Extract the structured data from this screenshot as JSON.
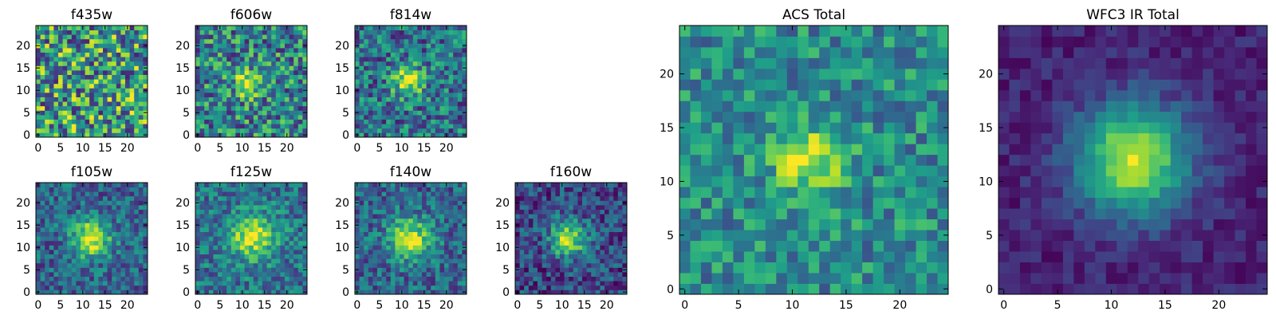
{
  "figure": {
    "colormap": "viridis",
    "colormap_stops": [
      "#440154",
      "#482878",
      "#3e4989",
      "#31688e",
      "#26828e",
      "#1f9e89",
      "#35b779",
      "#6ece58",
      "#b5de2b",
      "#fde725"
    ],
    "panels_total": 9
  },
  "chart_data": [
    {
      "type": "heatmap",
      "title": "f435w",
      "x_ticks": [
        "0",
        "5",
        "10",
        "15",
        "20"
      ],
      "y_ticks": [
        "0",
        "5",
        "10",
        "15",
        "20"
      ],
      "xlim": [
        -0.5,
        24.5
      ],
      "ylim": [
        -0.5,
        24.5
      ],
      "grid_size": [
        25,
        25
      ],
      "source": {
        "x0": 12.5,
        "y0": 12,
        "sigma": 4.0,
        "amp": 0.0
      },
      "noise": {
        "seed": 11,
        "amplitude": 0.9,
        "baseline": 0.55
      }
    },
    {
      "type": "heatmap",
      "title": "f606w",
      "x_ticks": [
        "0",
        "5",
        "10",
        "15",
        "20"
      ],
      "y_ticks": [
        "0",
        "5",
        "10",
        "15",
        "20"
      ],
      "xlim": [
        -0.5,
        24.5
      ],
      "ylim": [
        -0.5,
        24.5
      ],
      "grid_size": [
        25,
        25
      ],
      "source": {
        "x0": 11.5,
        "y0": 11.5,
        "sigma": 2.0,
        "amp": 0.55
      },
      "noise": {
        "seed": 23,
        "amplitude": 0.7,
        "baseline": 0.45
      }
    },
    {
      "type": "heatmap",
      "title": "f814w",
      "x_ticks": [
        "0",
        "5",
        "10",
        "15",
        "20"
      ],
      "y_ticks": [
        "0",
        "5",
        "10",
        "15",
        "20"
      ],
      "xlim": [
        -0.5,
        24.5
      ],
      "ylim": [
        -0.5,
        24.5
      ],
      "grid_size": [
        25,
        25
      ],
      "source": {
        "x0": 11.5,
        "y0": 12,
        "sigma": 2.4,
        "amp": 0.55
      },
      "noise": {
        "seed": 37,
        "amplitude": 0.6,
        "baseline": 0.38
      }
    },
    {
      "type": "heatmap",
      "title": "f105w",
      "x_ticks": [
        "0",
        "5",
        "10",
        "15",
        "20"
      ],
      "y_ticks": [
        "0",
        "5",
        "10",
        "15",
        "20"
      ],
      "xlim": [
        -0.5,
        24.5
      ],
      "ylim": [
        -0.5,
        24.5
      ],
      "grid_size": [
        25,
        25
      ],
      "source": {
        "x0": 12,
        "y0": 12,
        "sigma": 3.0,
        "amp": 0.65
      },
      "noise": {
        "seed": 41,
        "amplitude": 0.45,
        "baseline": 0.32
      }
    },
    {
      "type": "heatmap",
      "title": "f125w",
      "x_ticks": [
        "0",
        "5",
        "10",
        "15",
        "20"
      ],
      "y_ticks": [
        "0",
        "5",
        "10",
        "15",
        "20"
      ],
      "xlim": [
        -0.5,
        24.5
      ],
      "ylim": [
        -0.5,
        24.5
      ],
      "grid_size": [
        25,
        25
      ],
      "source": {
        "x0": 12.5,
        "y0": 12.5,
        "sigma": 3.6,
        "amp": 0.55
      },
      "noise": {
        "seed": 53,
        "amplitude": 0.45,
        "baseline": 0.38
      }
    },
    {
      "type": "heatmap",
      "title": "f140w",
      "x_ticks": [
        "0",
        "5",
        "10",
        "15",
        "20"
      ],
      "y_ticks": [
        "0",
        "5",
        "10",
        "15",
        "20"
      ],
      "xlim": [
        -0.5,
        24.5
      ],
      "ylim": [
        -0.5,
        24.5
      ],
      "grid_size": [
        25,
        25
      ],
      "source": {
        "x0": 12,
        "y0": 12,
        "sigma": 3.2,
        "amp": 0.6
      },
      "noise": {
        "seed": 67,
        "amplitude": 0.45,
        "baseline": 0.33
      }
    },
    {
      "type": "heatmap",
      "title": "f160w",
      "x_ticks": [
        "0",
        "5",
        "10",
        "15",
        "20"
      ],
      "y_ticks": [
        "0",
        "5",
        "10",
        "15",
        "20"
      ],
      "xlim": [
        -0.5,
        24.5
      ],
      "ylim": [
        -0.5,
        24.5
      ],
      "grid_size": [
        25,
        25
      ],
      "source": {
        "x0": 11.5,
        "y0": 12,
        "sigma": 3.0,
        "amp": 0.65
      },
      "noise": {
        "seed": 79,
        "amplitude": 0.45,
        "baseline": 0.22
      }
    },
    {
      "type": "heatmap",
      "title": "ACS Total",
      "x_ticks": [
        "0",
        "5",
        "10",
        "15",
        "20"
      ],
      "y_ticks": [
        "0",
        "5",
        "10",
        "15",
        "20"
      ],
      "xlim": [
        -0.5,
        24.5
      ],
      "ylim": [
        -0.5,
        24.5
      ],
      "grid_size": [
        25,
        25
      ],
      "source": {
        "x0": 11.5,
        "y0": 12,
        "sigma": 2.3,
        "amp": 0.45
      },
      "noise": {
        "seed": 97,
        "amplitude": 0.45,
        "baseline": 0.48
      }
    },
    {
      "type": "heatmap",
      "title": "WFC3 IR Total",
      "x_ticks": [
        "0",
        "5",
        "10",
        "15",
        "20"
      ],
      "y_ticks": [
        "0",
        "5",
        "10",
        "15",
        "20"
      ],
      "xlim": [
        -0.5,
        24.5
      ],
      "ylim": [
        -0.5,
        24.5
      ],
      "grid_size": [
        25,
        25
      ],
      "source": {
        "x0": 12,
        "y0": 12,
        "sigma": 3.6,
        "amp": 0.82
      },
      "noise": {
        "seed": 113,
        "amplitude": 0.18,
        "baseline": 0.1
      }
    }
  ]
}
